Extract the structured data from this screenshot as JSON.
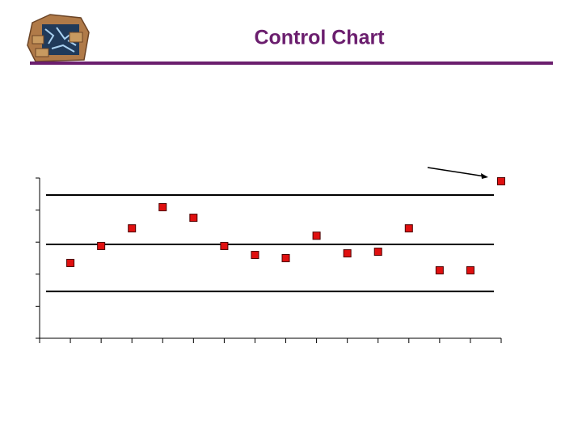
{
  "chart_data": {
    "type": "scatter",
    "title": "Control Chart",
    "x": [
      1,
      2,
      3,
      4,
      5,
      6,
      7,
      8,
      9,
      10,
      11,
      12,
      13,
      14,
      15
    ],
    "values": [
      2.35,
      2.88,
      3.43,
      4.09,
      3.76,
      2.88,
      2.6,
      2.5,
      3.2,
      2.65,
      2.7,
      3.43,
      2.12,
      2.12,
      4.9
    ],
    "color": "#e01010",
    "xlim": [
      0,
      15
    ],
    "xticks": [
      0,
      1,
      2,
      3,
      4,
      5,
      6,
      7,
      8,
      9,
      10,
      11,
      12,
      13,
      14,
      15
    ],
    "ylim": [
      0,
      5
    ],
    "yticks": [
      0,
      1,
      2,
      3,
      4,
      5
    ],
    "control_limits": {
      "ucl": 4.47,
      "center": 2.93,
      "lcl": 1.46
    }
  }
}
